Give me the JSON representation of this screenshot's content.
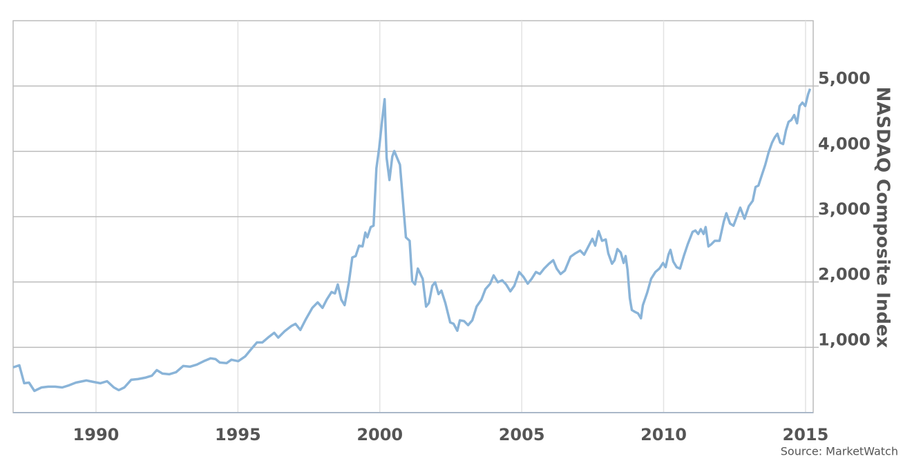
{
  "chart_data": {
    "type": "line",
    "y_axis_label": "NASDAQ Composite Index",
    "source": "Source: MarketWatch",
    "color": "#8ab4d8",
    "grid": true,
    "xlim": [
      1987.08,
      2015.27
    ],
    "xticks": [
      1990,
      1995,
      2000,
      2005,
      2010,
      2015
    ],
    "ylim": [
      0,
      6000
    ],
    "yticks": [
      {
        "value": 1000,
        "label": "1,000"
      },
      {
        "value": 2000,
        "label": "2,000"
      },
      {
        "value": 3000,
        "label": "3,000"
      },
      {
        "value": 4000,
        "label": "4,000"
      },
      {
        "value": 5000,
        "label": "5,000"
      }
    ],
    "x": [
      1987.08,
      1987.3,
      1987.47,
      1987.64,
      1987.83,
      1988.08,
      1988.32,
      1988.56,
      1988.81,
      1989.05,
      1989.29,
      1989.66,
      1989.9,
      1990.15,
      1990.39,
      1990.63,
      1990.8,
      1991.0,
      1991.24,
      1991.48,
      1991.73,
      1991.97,
      1992.14,
      1992.34,
      1992.58,
      1992.82,
      1993.07,
      1993.31,
      1993.55,
      1993.8,
      1994.04,
      1994.21,
      1994.36,
      1994.6,
      1994.77,
      1995.01,
      1995.26,
      1995.5,
      1995.67,
      1995.86,
      1996.06,
      1996.28,
      1996.42,
      1996.64,
      1996.89,
      1997.03,
      1997.2,
      1997.4,
      1997.62,
      1997.81,
      1997.98,
      1998.13,
      1998.3,
      1998.42,
      1998.52,
      1998.64,
      1998.76,
      1998.91,
      1999.03,
      1999.15,
      1999.27,
      1999.39,
      1999.49,
      1999.56,
      1999.68,
      1999.78,
      1999.88,
      1999.98,
      2000.07,
      2000.17,
      2000.24,
      2000.34,
      2000.44,
      2000.51,
      2000.61,
      2000.71,
      2000.8,
      2000.92,
      2001.05,
      2001.14,
      2001.24,
      2001.34,
      2001.51,
      2001.63,
      2001.73,
      2001.85,
      2001.95,
      2002.07,
      2002.17,
      2002.31,
      2002.48,
      2002.6,
      2002.73,
      2002.82,
      2002.97,
      2003.11,
      2003.26,
      2003.41,
      2003.58,
      2003.72,
      2003.89,
      2004.01,
      2004.16,
      2004.31,
      2004.45,
      2004.6,
      2004.74,
      2004.91,
      2005.06,
      2005.21,
      2005.35,
      2005.5,
      2005.64,
      2005.79,
      2005.96,
      2006.11,
      2006.23,
      2006.37,
      2006.52,
      2006.72,
      2006.89,
      2007.06,
      2007.2,
      2007.35,
      2007.49,
      2007.59,
      2007.71,
      2007.83,
      2007.96,
      2008.05,
      2008.18,
      2008.27,
      2008.37,
      2008.49,
      2008.59,
      2008.66,
      2008.73,
      2008.81,
      2008.88,
      2009.0,
      2009.1,
      2009.2,
      2009.27,
      2009.42,
      2009.56,
      2009.71,
      2009.85,
      2009.98,
      2010.07,
      2010.17,
      2010.24,
      2010.34,
      2010.46,
      2010.58,
      2010.71,
      2010.85,
      2011.02,
      2011.12,
      2011.22,
      2011.31,
      2011.41,
      2011.48,
      2011.58,
      2011.68,
      2011.8,
      2011.97,
      2012.12,
      2012.21,
      2012.34,
      2012.46,
      2012.58,
      2012.7,
      2012.85,
      2013.0,
      2013.14,
      2013.24,
      2013.34,
      2013.46,
      2013.58,
      2013.7,
      2013.82,
      2013.92,
      2014.01,
      2014.11,
      2014.21,
      2014.31,
      2014.4,
      2014.5,
      2014.6,
      2014.7,
      2014.79,
      2014.89,
      2014.99,
      2015.09,
      2015.16
    ],
    "values": [
      693,
      725,
      450,
      460,
      333,
      386,
      397,
      397,
      386,
      418,
      460,
      492,
      471,
      450,
      481,
      386,
      344,
      386,
      503,
      513,
      534,
      566,
      651,
      598,
      587,
      619,
      714,
      704,
      735,
      788,
      831,
      820,
      767,
      757,
      810,
      788,
      862,
      989,
      1074,
      1074,
      1148,
      1222,
      1148,
      1243,
      1328,
      1360,
      1265,
      1434,
      1603,
      1688,
      1603,
      1730,
      1847,
      1825,
      1963,
      1730,
      1646,
      1995,
      2376,
      2397,
      2556,
      2545,
      2757,
      2683,
      2841,
      2862,
      3741,
      4058,
      4429,
      4799,
      3899,
      3561,
      3921,
      4005,
      3899,
      3794,
      3317,
      2683,
      2630,
      2016,
      1963,
      2206,
      2048,
      1624,
      1677,
      1942,
      1995,
      1815,
      1868,
      1677,
      1381,
      1360,
      1254,
      1413,
      1402,
      1339,
      1413,
      1624,
      1730,
      1889,
      1974,
      2101,
      1995,
      2026,
      1963,
      1857,
      1942,
      2153,
      2079,
      1974,
      2048,
      2153,
      2122,
      2206,
      2280,
      2333,
      2206,
      2122,
      2175,
      2386,
      2439,
      2481,
      2418,
      2545,
      2661,
      2556,
      2778,
      2630,
      2651,
      2439,
      2280,
      2333,
      2503,
      2450,
      2291,
      2397,
      2185,
      1751,
      1571,
      1540,
      1519,
      1444,
      1646,
      1836,
      2048,
      2153,
      2206,
      2291,
      2227,
      2418,
      2492,
      2312,
      2227,
      2206,
      2397,
      2577,
      2767,
      2788,
      2735,
      2809,
      2735,
      2841,
      2545,
      2577,
      2630,
      2630,
      2926,
      3053,
      2894,
      2862,
      3000,
      3138,
      2968,
      3159,
      3243,
      3455,
      3476,
      3635,
      3794,
      3984,
      4132,
      4217,
      4270,
      4132,
      4111,
      4323,
      4450,
      4481,
      4556,
      4429,
      4693,
      4746,
      4693,
      4873,
      4958
    ]
  }
}
